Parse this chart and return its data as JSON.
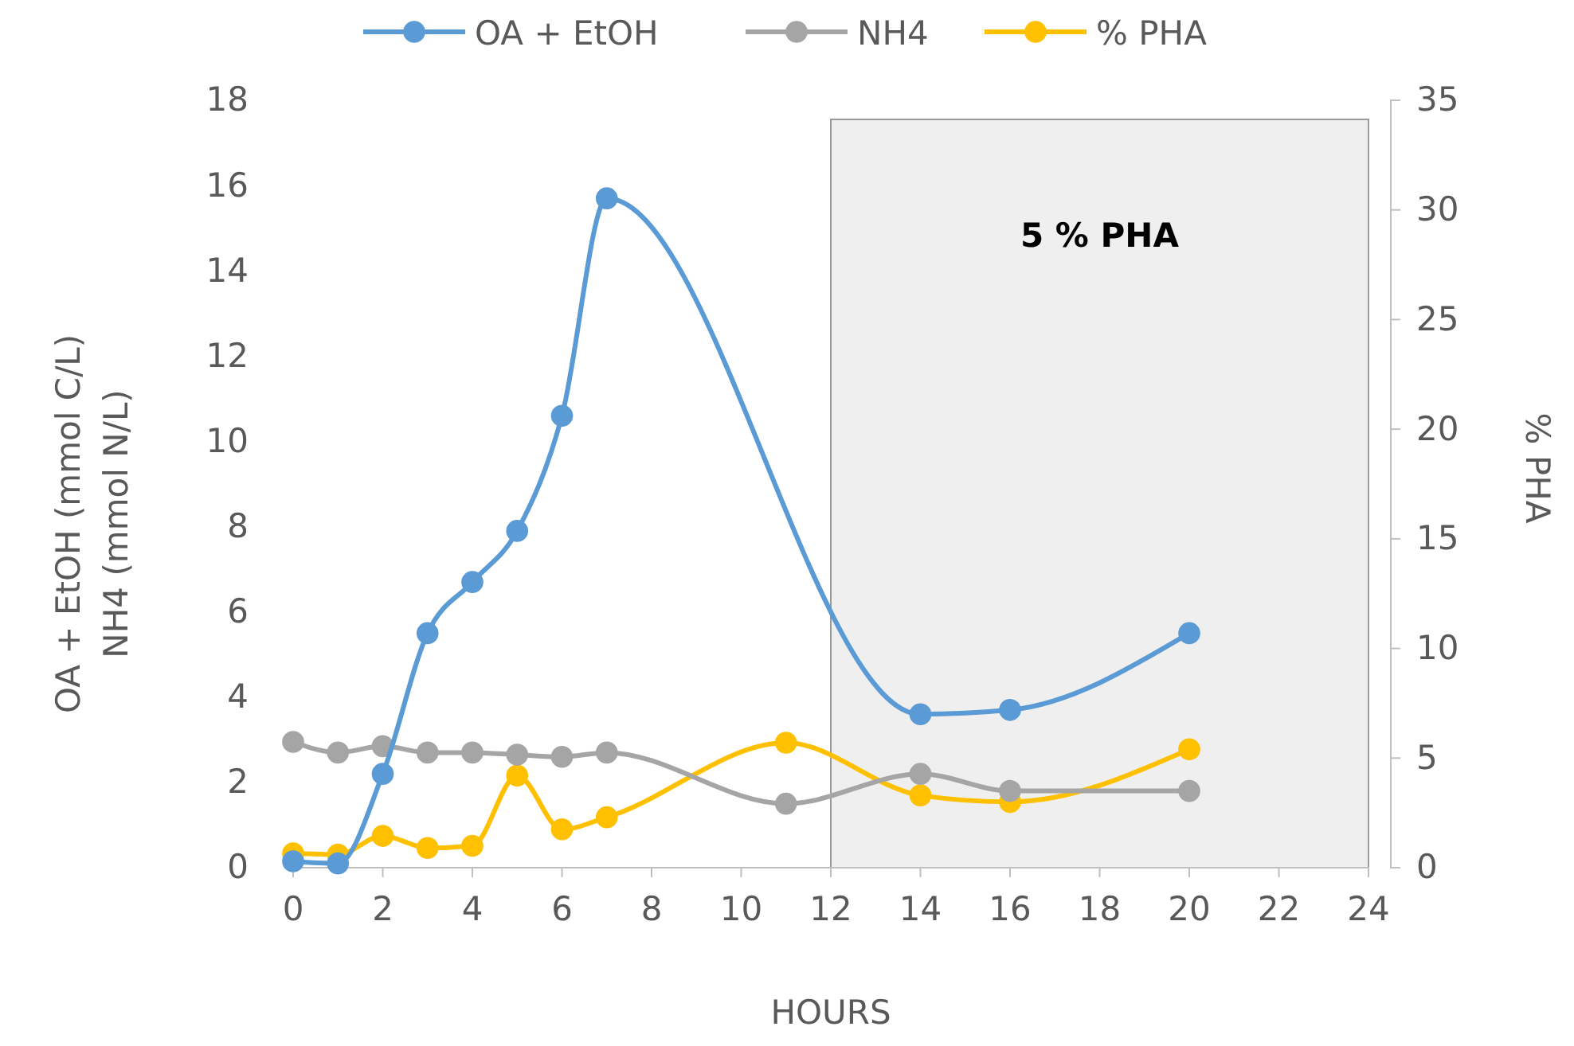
{
  "chart_data": {
    "type": "line",
    "xlabel": "HOURS",
    "ylabel": "OA + EtOH  (mmol C/L)\nNH4 (mmol N/L)",
    "y2label": "% PHA",
    "xlim": [
      0,
      24
    ],
    "xticks": [
      0,
      2,
      4,
      6,
      8,
      10,
      12,
      14,
      16,
      18,
      20,
      22,
      24
    ],
    "ylim": [
      0,
      18
    ],
    "yticks": [
      0,
      2,
      4,
      6,
      8,
      10,
      12,
      14,
      16,
      18
    ],
    "y2lim": [
      0,
      35
    ],
    "y2ticks": [
      0,
      5,
      10,
      15,
      20,
      25,
      30,
      35
    ],
    "series": [
      {
        "name": "OA + EtOH",
        "color": "#5b9bd5",
        "x": [
          0,
          1,
          2,
          3,
          4,
          5,
          6,
          7,
          14,
          16,
          20
        ],
        "values": [
          0.15,
          0.1,
          2.2,
          5.5,
          6.7,
          7.9,
          10.6,
          15.7,
          3.6,
          3.7,
          5.5
        ]
      },
      {
        "name": "NH4",
        "color": "#a5a5a5",
        "x": [
          0,
          1,
          2,
          3,
          4,
          5,
          6,
          7,
          11,
          14,
          16,
          20
        ],
        "values": [
          2.95,
          2.7,
          2.85,
          2.7,
          2.7,
          2.65,
          2.6,
          2.7,
          1.5,
          2.2,
          1.8,
          1.8
        ]
      },
      {
        "name": "% PHA",
        "color": "#ffc000",
        "axis": "y2",
        "x": [
          0,
          1,
          2,
          3,
          4,
          5,
          6,
          7,
          11,
          14,
          16,
          20
        ],
        "values": [
          0.65,
          0.6,
          1.45,
          0.9,
          1.0,
          4.2,
          1.75,
          2.3,
          5.7,
          3.3,
          3.0,
          5.4
        ]
      }
    ],
    "bands": [
      {
        "axis": "x",
        "from": 12,
        "to": 24,
        "color": "#efefef"
      }
    ],
    "annotations": [
      "5 % PHA"
    ],
    "legend": "top",
    "marker": "circle",
    "line_style": "solid",
    "grid": false
  }
}
